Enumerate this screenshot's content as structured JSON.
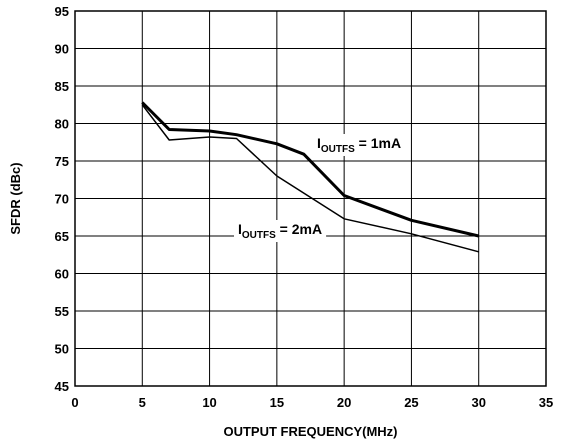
{
  "chart_data": {
    "type": "line",
    "title": "",
    "xlabel": "OUTPUT FREQUENCY(MHz)",
    "ylabel": "SFDR (dBc)",
    "xlim": [
      0,
      35
    ],
    "ylim": [
      45,
      95
    ],
    "xticks": [
      0,
      5,
      10,
      15,
      20,
      25,
      30,
      35
    ],
    "yticks": [
      45,
      50,
      55,
      60,
      65,
      70,
      75,
      80,
      85,
      90,
      95
    ],
    "grid": true,
    "legend": "none",
    "series": [
      {
        "name": "IOUTFS = 1mA",
        "x": [
          5,
          7,
          10,
          12,
          15,
          17,
          20,
          25,
          30
        ],
        "y": [
          82.8,
          79.2,
          79.0,
          78.5,
          77.3,
          75.9,
          70.4,
          67.1,
          65.0
        ],
        "color": "#000000",
        "stroke_weight": "heavy"
      },
      {
        "name": "IOUTFS = 2mA",
        "x": [
          5,
          7,
          10,
          12,
          15,
          20,
          25,
          30
        ],
        "y": [
          82.5,
          77.8,
          78.2,
          78.0,
          73.0,
          67.3,
          65.3,
          62.9
        ],
        "color": "#000000",
        "stroke_weight": "light"
      }
    ],
    "annotations": [
      {
        "main": "I",
        "sub": "OUTFS",
        "rest": " = 1mA",
        "series": 0
      },
      {
        "main": "I",
        "sub": "OUTFS",
        "rest": " = 2mA",
        "series": 1
      }
    ]
  }
}
